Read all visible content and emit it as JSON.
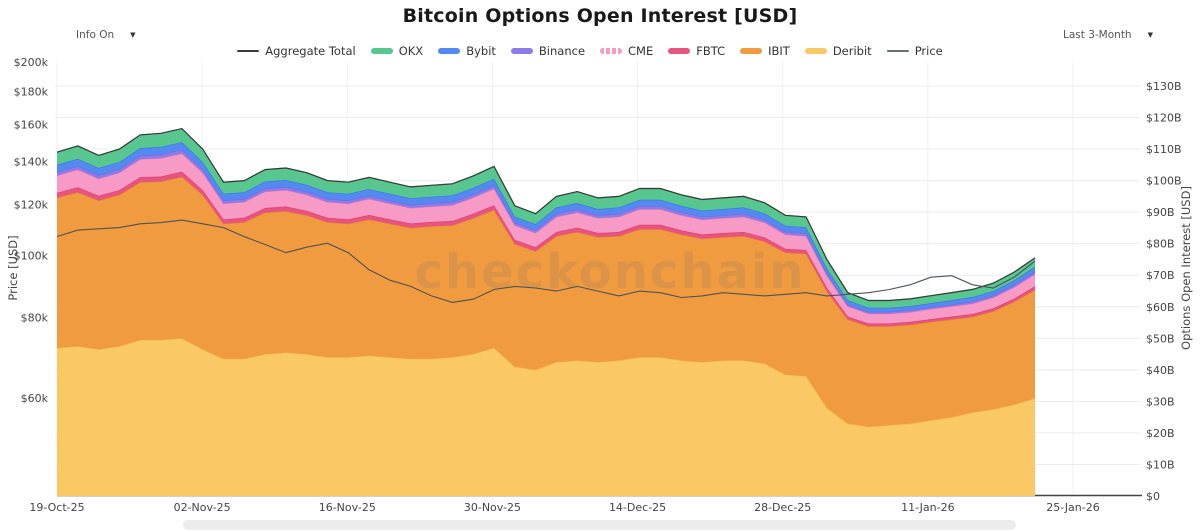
{
  "header": {
    "title": "Bitcoin Options Open Interest [USD]"
  },
  "controls": {
    "info_label": "Info On",
    "info_caret": "▼",
    "timeframe_label": "Last 3-Month",
    "timeframe_caret": "▼"
  },
  "watermark": "checkonchain",
  "axes": {
    "left_title": "Price [USD]",
    "right_title": "Options Open Interest [USD]",
    "left_ticks": [
      "$200k",
      "$180k",
      "$160k",
      "$140k",
      "$120k",
      "$100k",
      "$80k",
      "$60k"
    ],
    "left_tick_values_k": [
      200,
      180,
      160,
      140,
      120,
      100,
      80,
      60
    ],
    "right_ticks": [
      "$130B",
      "$120B",
      "$110B",
      "$100B",
      "$90B",
      "$80B",
      "$70B",
      "$60B",
      "$50B",
      "$40B",
      "$30B",
      "$20B",
      "$10B",
      "$0"
    ],
    "right_tick_values_b": [
      130,
      120,
      110,
      100,
      90,
      80,
      70,
      60,
      50,
      40,
      30,
      20,
      10,
      0
    ],
    "x_ticks": [
      "19-Oct-25",
      "02-Nov-25",
      "16-Nov-25",
      "30-Nov-25",
      "14-Dec-25",
      "28-Dec-25",
      "11-Jan-26",
      "25-Jan-26"
    ]
  },
  "legend": [
    {
      "label": "Aggregate Total",
      "color": "#3a3a3a",
      "swatch": "line"
    },
    {
      "label": "OKX",
      "color": "#57c78f",
      "swatch": "bar"
    },
    {
      "label": "Bybit",
      "color": "#5389f0",
      "swatch": "bar"
    },
    {
      "label": "Binance",
      "color": "#8d7ce8",
      "swatch": "bar"
    },
    {
      "label": "CME",
      "color": "#f79ac6",
      "swatch": "dash"
    },
    {
      "label": "FBTC",
      "color": "#e9537f",
      "swatch": "bar"
    },
    {
      "label": "IBIT",
      "color": "#f09b40",
      "swatch": "bar"
    },
    {
      "label": "Deribit",
      "color": "#fac865",
      "swatch": "bar"
    },
    {
      "label": "Price",
      "color": "#6a6f73",
      "swatch": "line"
    }
  ],
  "chart_data": {
    "type": "area",
    "stacked": true,
    "grid": true,
    "legend_position": "top",
    "x": [
      "19-Oct-25",
      "21-Oct-25",
      "23-Oct-25",
      "25-Oct-25",
      "27-Oct-25",
      "29-Oct-25",
      "31-Oct-25",
      "02-Nov-25",
      "04-Nov-25",
      "06-Nov-25",
      "08-Nov-25",
      "10-Nov-25",
      "12-Nov-25",
      "14-Nov-25",
      "16-Nov-25",
      "18-Nov-25",
      "20-Nov-25",
      "22-Nov-25",
      "24-Nov-25",
      "26-Nov-25",
      "28-Nov-25",
      "30-Nov-25",
      "02-Dec-25",
      "04-Dec-25",
      "06-Dec-25",
      "08-Dec-25",
      "10-Dec-25",
      "12-Dec-25",
      "14-Dec-25",
      "16-Dec-25",
      "18-Dec-25",
      "20-Dec-25",
      "22-Dec-25",
      "24-Dec-25",
      "26-Dec-25",
      "28-Dec-25",
      "30-Dec-25",
      "01-Jan-26",
      "03-Jan-26",
      "05-Jan-26",
      "07-Jan-26",
      "09-Jan-26",
      "11-Jan-26",
      "13-Jan-26",
      "15-Jan-26",
      "17-Jan-26",
      "19-Jan-26",
      "21-Jan-26"
    ],
    "unit": "billions USD",
    "series": [
      {
        "name": "Deribit",
        "color": "#fac865",
        "edge": "#f0b44a",
        "values": [
          47,
          47.5,
          46.5,
          47.5,
          49.5,
          49.5,
          50,
          46.5,
          43.5,
          43.5,
          45,
          45.5,
          45,
          44,
          44,
          44.5,
          44,
          43.5,
          43.5,
          44,
          45,
          47,
          41,
          40,
          42.5,
          43,
          42.5,
          43,
          44,
          44,
          43,
          42.5,
          43,
          43,
          42,
          38.5,
          38,
          28,
          23,
          22,
          22.5,
          23,
          24,
          25,
          26.5,
          27.5,
          29,
          31
        ]
      },
      {
        "name": "IBIT",
        "color": "#f09b40",
        "edge": "#e0882c",
        "values": [
          47.6,
          48.8,
          47.2,
          48,
          50,
          50.2,
          51.2,
          49,
          42.8,
          43.3,
          44.9,
          44.8,
          44,
          42.8,
          42.3,
          43.2,
          42.3,
          41.5,
          42,
          41.8,
          43.1,
          43.7,
          38.9,
          37.6,
          39.9,
          40.7,
          39.6,
          39.4,
          40.6,
          40.6,
          39.9,
          39.1,
          39.1,
          39.4,
          38.7,
          38.7,
          38.8,
          36.9,
          33,
          31.8,
          31.3,
          31.3,
          31.2,
          31,
          30.3,
          31.1,
          32.6,
          34.4
        ]
      },
      {
        "name": "FBTC",
        "color": "#e9537f",
        "edge": "#da3e6c",
        "values": [
          1.5,
          1.6,
          1.5,
          1.5,
          1.6,
          1.6,
          1.6,
          1.5,
          1.4,
          1.4,
          1.4,
          1.5,
          1.4,
          1.4,
          1.4,
          1.4,
          1.4,
          1.4,
          1.4,
          1.4,
          1.4,
          1.5,
          1.3,
          1.3,
          1.3,
          1.4,
          1.3,
          1.3,
          1.4,
          1.4,
          1.3,
          1.3,
          1.3,
          1.3,
          1.3,
          1.2,
          1.2,
          1.1,
          0.9,
          0.9,
          0.9,
          0.9,
          0.9,
          0.9,
          0.9,
          0.9,
          1.0,
          1.1
        ]
      },
      {
        "name": "CME",
        "color": "#f79ac6",
        "edge": "#ee7fb4",
        "values": [
          5.5,
          5.6,
          5.4,
          5.5,
          5.7,
          5.8,
          5.8,
          5.5,
          5.0,
          5.0,
          5.2,
          5.2,
          5.1,
          5.0,
          5.0,
          5.1,
          5.0,
          4.9,
          4.9,
          5.0,
          5.1,
          5.2,
          4.6,
          4.5,
          4.8,
          4.8,
          4.7,
          4.8,
          4.9,
          4.9,
          4.8,
          4.7,
          4.7,
          4.8,
          4.7,
          4.5,
          4.4,
          3.8,
          3.2,
          3.1,
          3.1,
          3.1,
          3.2,
          3.2,
          3.3,
          3.4,
          3.6,
          3.8
        ]
      },
      {
        "name": "Binance",
        "color": "#8d7ce8",
        "edge": "#7a66dd",
        "values": [
          1.1,
          1.1,
          1.1,
          1.1,
          1.1,
          1.2,
          1.2,
          1.1,
          1.0,
          1.0,
          1.0,
          1.0,
          1.0,
          1.0,
          1.0,
          1.0,
          1.0,
          1.0,
          1.0,
          1.0,
          1.0,
          1.0,
          0.9,
          0.9,
          1.0,
          1.0,
          0.9,
          1.0,
          1.0,
          1.0,
          1.0,
          0.9,
          0.9,
          1.0,
          0.9,
          0.9,
          0.9,
          0.8,
          0.6,
          0.6,
          0.6,
          0.6,
          0.6,
          0.6,
          0.7,
          0.7,
          0.7,
          0.8
        ]
      },
      {
        "name": "Bybit",
        "color": "#5389f0",
        "edge": "#3d74e4",
        "values": [
          2.3,
          2.3,
          2.3,
          2.3,
          2.4,
          2.4,
          2.4,
          2.3,
          2.1,
          2.1,
          2.2,
          2.2,
          2.2,
          2.1,
          2.1,
          2.1,
          2.1,
          2.1,
          2.1,
          2.1,
          2.1,
          2.2,
          1.9,
          1.9,
          2.0,
          2.0,
          2.0,
          2.0,
          2.0,
          2.0,
          2.0,
          2.0,
          2.0,
          2.0,
          2.0,
          1.9,
          1.9,
          1.6,
          1.4,
          1.3,
          1.3,
          1.3,
          1.3,
          1.4,
          1.4,
          1.4,
          1.5,
          1.6
        ]
      },
      {
        "name": "OKX",
        "color": "#57c78f",
        "edge": "#41b47b",
        "values": [
          4.0,
          4.1,
          4.0,
          4.1,
          4.2,
          4.3,
          4.3,
          4.1,
          3.7,
          3.7,
          3.8,
          3.8,
          3.8,
          3.7,
          3.7,
          3.7,
          3.7,
          3.6,
          3.6,
          3.7,
          3.8,
          3.9,
          3.4,
          3.3,
          3.5,
          3.6,
          3.5,
          3.5,
          3.6,
          3.6,
          3.5,
          3.5,
          3.5,
          3.5,
          3.4,
          3.3,
          3.3,
          2.8,
          2.4,
          2.3,
          2.3,
          2.3,
          2.3,
          2.4,
          2.4,
          2.5,
          2.6,
          2.8
        ]
      }
    ],
    "aggregate": {
      "name": "Aggregate Total",
      "color": "#3a3a3a",
      "values": [
        109,
        111,
        108,
        110,
        114.5,
        115,
        116.5,
        110,
        99.5,
        100,
        103.5,
        104,
        102.5,
        100,
        99.5,
        101,
        99.5,
        98,
        98.5,
        99,
        101.5,
        104.5,
        92,
        89.5,
        95,
        96.5,
        94.5,
        95,
        97.5,
        97.5,
        95.5,
        94,
        94.5,
        95,
        93,
        89,
        88.5,
        75,
        64.5,
        62,
        62,
        62.5,
        63.5,
        64.5,
        65.5,
        67.5,
        71,
        75.5
      ]
    },
    "price": {
      "name": "Price",
      "color": "#4d5257",
      "unit": "USD thousands",
      "axis": "left-log",
      "values": [
        107,
        109.5,
        110,
        110.5,
        112,
        112.5,
        113.5,
        112,
        110.5,
        107,
        104,
        101,
        103,
        104.5,
        101,
        95,
        91.5,
        89.5,
        86.5,
        84.5,
        85.5,
        88.5,
        89.5,
        89,
        88,
        89.5,
        88,
        86.5,
        88,
        87.5,
        86,
        86.5,
        87.5,
        87,
        86.5,
        87,
        87.5,
        86.5,
        87,
        87.5,
        88.5,
        90,
        92.5,
        93,
        90,
        89,
        92.5,
        98
      ]
    },
    "right_axis": {
      "title": "Options Open Interest [USD]",
      "range_b": [
        0,
        130
      ],
      "tick_step_b": 10,
      "scale": "linear"
    },
    "left_axis": {
      "title": "Price [USD]",
      "range_k": [
        60,
        200
      ],
      "scale": "log"
    }
  }
}
